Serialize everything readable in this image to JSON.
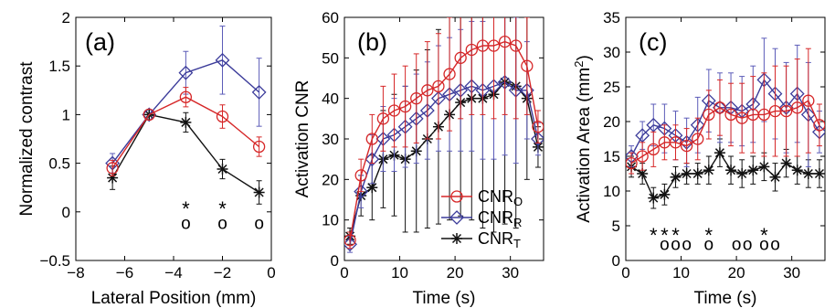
{
  "colors": {
    "O": "#d62728",
    "R": "#3b3b9a",
    "T": "#111111",
    "O_err": "#d62728",
    "R_err": "#5c5cb8",
    "T_err": "#111111"
  },
  "chart_data": [
    {
      "type": "line",
      "panel_label": "(a)",
      "xlabel": "Lateral Position (mm)",
      "ylabel": "Normalized contrast",
      "xlim": [
        -8,
        0
      ],
      "ylim": [
        -0.5,
        2
      ],
      "xticks": [
        -8,
        -6,
        -4,
        -2,
        0
      ],
      "yticks": [
        -0.5,
        0,
        0.5,
        1,
        1.5,
        2
      ],
      "xtick_labels": [
        "−8",
        "−6",
        "−4",
        "−2",
        "0"
      ],
      "ytick_labels": [
        "−0.5",
        "0",
        "0.5",
        "1",
        "1.5",
        "2"
      ],
      "x": [
        -6.5,
        -5,
        -3.5,
        -2,
        -0.5
      ],
      "series": [
        {
          "key": "O",
          "values": [
            0.45,
            1.0,
            1.18,
            0.98,
            0.67
          ],
          "err": [
            0.08,
            0,
            0.1,
            0.12,
            0.1
          ]
        },
        {
          "key": "R",
          "values": [
            0.5,
            1.0,
            1.43,
            1.56,
            1.23
          ],
          "err": [
            0.1,
            0,
            0.22,
            0.35,
            0.35
          ]
        },
        {
          "key": "T",
          "values": [
            0.35,
            1.0,
            0.92,
            0.44,
            0.2
          ],
          "err": [
            0.12,
            0,
            0.1,
            0.1,
            0.12
          ]
        }
      ],
      "significance": [
        {
          "x": -3.5,
          "star": "*",
          "circle": "o"
        },
        {
          "x": -2.0,
          "star": "*",
          "circle": "o"
        },
        {
          "x": -0.5,
          "star": "",
          "circle": "o"
        }
      ]
    },
    {
      "type": "line",
      "panel_label": "(b)",
      "xlabel": "Time (s)",
      "ylabel": "Activation CNR",
      "xlim": [
        0,
        36
      ],
      "ylim": [
        0,
        60
      ],
      "xticks": [
        0,
        10,
        20,
        30
      ],
      "yticks": [
        0,
        10,
        20,
        30,
        40,
        50,
        60
      ],
      "xtick_labels": [
        "0",
        "10",
        "20",
        "30"
      ],
      "ytick_labels": [
        "0",
        "10",
        "20",
        "30",
        "40",
        "50",
        "60"
      ],
      "x": [
        1,
        3,
        5,
        7,
        9,
        11,
        13,
        15,
        17,
        19,
        21,
        23,
        25,
        27,
        29,
        31,
        33,
        35
      ],
      "series": [
        {
          "key": "O",
          "values": [
            5,
            21,
            30,
            35,
            37,
            38,
            40,
            42,
            43,
            46,
            50,
            52,
            53,
            53,
            54,
            53,
            48,
            33
          ],
          "err": [
            2,
            4,
            6,
            8,
            9,
            10,
            11,
            12,
            13,
            14,
            15,
            16,
            17,
            18,
            18,
            18,
            12,
            4
          ]
        },
        {
          "key": "R",
          "values": [
            4,
            17,
            25,
            30,
            31,
            33,
            35,
            37,
            40,
            41,
            42,
            43,
            42,
            43,
            44,
            42,
            42,
            30
          ],
          "err": [
            2,
            4,
            6,
            8,
            9,
            10,
            11,
            12,
            13,
            14,
            15,
            16,
            17,
            18,
            18,
            18,
            12,
            4
          ]
        },
        {
          "key": "T",
          "values": [
            6,
            16,
            18,
            25,
            26,
            25,
            27,
            30,
            33,
            36,
            39,
            40,
            40,
            41,
            44,
            43,
            40,
            28
          ],
          "err": [
            2,
            5,
            8,
            12,
            15,
            18,
            20,
            22,
            24,
            26,
            28,
            30,
            32,
            34,
            35,
            35,
            20,
            5
          ]
        }
      ],
      "legend": {
        "position": "bottom-right",
        "entries": [
          {
            "key": "O",
            "label": "CNR",
            "subscript": "O"
          },
          {
            "key": "R",
            "label": "CNR",
            "subscript": "R"
          },
          {
            "key": "T",
            "label": "CNR",
            "subscript": "T"
          }
        ]
      }
    },
    {
      "type": "line",
      "panel_label": "(c)",
      "xlabel": "Time (s)",
      "ylabel": "Activation Area (mm",
      "ylabel_superscript": "2",
      "ylabel_suffix": ")",
      "xlim": [
        0,
        36
      ],
      "ylim": [
        0,
        35
      ],
      "xticks": [
        0,
        10,
        20,
        30
      ],
      "yticks": [
        0,
        5,
        10,
        15,
        20,
        25,
        30,
        35
      ],
      "xtick_labels": [
        "0",
        "10",
        "20",
        "30"
      ],
      "ytick_labels": [
        "0",
        "5",
        "10",
        "15",
        "20",
        "25",
        "30",
        "35"
      ],
      "x": [
        1,
        3,
        5,
        7,
        9,
        11,
        13,
        15,
        17,
        19,
        21,
        23,
        25,
        27,
        29,
        31,
        33,
        35
      ],
      "series": [
        {
          "key": "O",
          "values": [
            14,
            15,
            16,
            17,
            17,
            16.5,
            17.5,
            21,
            22,
            21,
            20.5,
            21,
            21,
            21.5,
            21.5,
            22,
            23,
            19.5
          ],
          "err": [
            1.5,
            2,
            2.5,
            2.5,
            2.5,
            2.5,
            3,
            3.5,
            4,
            4.5,
            5,
            5.5,
            6,
            6.5,
            6.5,
            7,
            7.5,
            3
          ]
        },
        {
          "key": "R",
          "values": [
            15,
            18,
            19.5,
            19,
            18,
            17,
            19.5,
            23,
            22,
            22,
            21.5,
            22.5,
            26,
            24,
            22,
            24,
            21,
            18.5
          ],
          "err": [
            1.5,
            2,
            3,
            3.5,
            3.5,
            3.5,
            4,
            4.5,
            5,
            5,
            5,
            5.5,
            6,
            6.5,
            6.5,
            7,
            7.5,
            3
          ]
        },
        {
          "key": "T",
          "values": [
            13.5,
            12.5,
            9,
            9.5,
            12,
            12.5,
            12.5,
            13,
            15.5,
            13,
            12.5,
            13,
            13.5,
            12,
            14,
            13,
            12.5,
            12.5
          ],
          "err": [
            1.5,
            1.5,
            1.5,
            1.5,
            1.5,
            1.5,
            1.5,
            2,
            2,
            2,
            2,
            2,
            2,
            2,
            2,
            2,
            2,
            2
          ]
        }
      ],
      "significance": [
        {
          "x": 5,
          "star": "*",
          "circle": ""
        },
        {
          "x": 7,
          "star": "*",
          "circle": "o"
        },
        {
          "x": 9,
          "star": "*",
          "circle": "o"
        },
        {
          "x": 11,
          "star": "",
          "circle": "o"
        },
        {
          "x": 15,
          "star": "*",
          "circle": "o"
        },
        {
          "x": 20,
          "star": "",
          "circle": "o"
        },
        {
          "x": 22,
          "star": "",
          "circle": "o"
        },
        {
          "x": 25,
          "star": "*",
          "circle": "o"
        },
        {
          "x": 27,
          "star": "",
          "circle": "o"
        }
      ],
      "significance_y": {
        "star": 4.5,
        "circle": 2.3
      }
    }
  ]
}
